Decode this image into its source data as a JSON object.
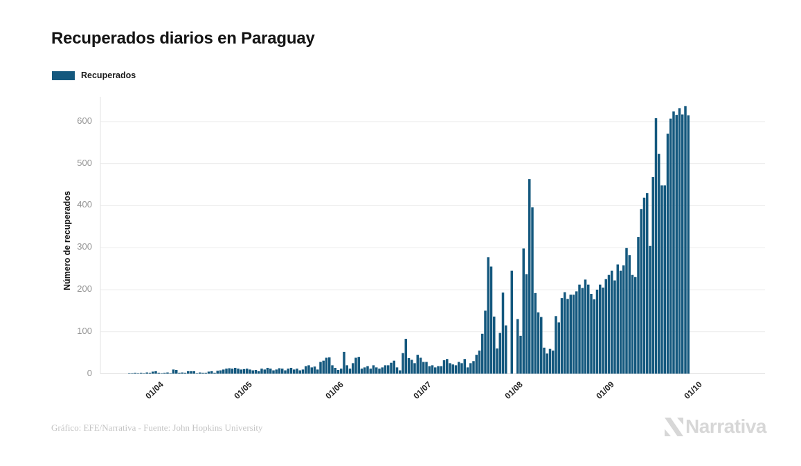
{
  "header": {
    "title": "Recuperados diarios en Paraguay"
  },
  "legend": {
    "label": "Recuperados"
  },
  "footer": {
    "credit": "Gráfico: EFE/Narrativa - Fuente: John Hopkins University",
    "brand": "Narrativa"
  },
  "chart_data": {
    "type": "bar",
    "title": "Recuperados diarios en Paraguay",
    "series_name": "Recuperados",
    "xlabel": "",
    "ylabel": "Número de recuperados",
    "bar_color": "#14587e",
    "grid": "horizontal",
    "legend_position": "top-left",
    "ylim": [
      0,
      650
    ],
    "y_ticks": [
      0,
      100,
      200,
      300,
      400,
      500,
      600
    ],
    "x_tick_labels": [
      "01/04",
      "01/05",
      "01/06",
      "01/07",
      "01/08",
      "01/09",
      "01/10"
    ],
    "x_tick_day_index": [
      10,
      40,
      71,
      101,
      132,
      163,
      193
    ],
    "values": [
      1,
      1,
      2,
      1,
      2,
      1,
      3,
      2,
      5,
      6,
      2,
      1,
      2,
      3,
      1,
      10,
      9,
      2,
      3,
      2,
      6,
      6,
      6,
      1,
      3,
      2,
      2,
      5,
      6,
      2,
      7,
      8,
      10,
      12,
      13,
      12,
      14,
      12,
      10,
      11,
      12,
      10,
      8,
      9,
      6,
      12,
      10,
      14,
      12,
      8,
      10,
      13,
      12,
      8,
      12,
      14,
      10,
      12,
      8,
      10,
      18,
      20,
      15,
      17,
      10,
      28,
      31,
      38,
      39,
      20,
      14,
      9,
      12,
      52,
      20,
      12,
      25,
      38,
      40,
      12,
      15,
      18,
      12,
      20,
      15,
      12,
      15,
      20,
      20,
      26,
      31,
      15,
      8,
      49,
      83,
      37,
      33,
      25,
      45,
      38,
      28,
      28,
      18,
      20,
      15,
      18,
      18,
      32,
      35,
      25,
      22,
      20,
      28,
      25,
      35,
      15,
      25,
      30,
      45,
      55,
      95,
      150,
      277,
      255,
      136,
      60,
      97,
      193,
      115,
      0,
      245,
      0,
      130,
      90,
      298,
      237,
      463,
      396,
      192,
      146,
      135,
      62,
      48,
      59,
      55,
      137,
      122,
      180,
      194,
      178,
      188,
      188,
      196,
      212,
      204,
      224,
      212,
      190,
      177,
      200,
      212,
      205,
      225,
      235,
      245,
      222,
      260,
      245,
      258,
      299,
      282,
      235,
      230,
      325,
      392,
      419,
      430,
      304,
      468,
      608,
      523,
      448,
      448,
      571,
      607,
      624,
      616,
      632,
      617,
      637,
      615
    ]
  }
}
